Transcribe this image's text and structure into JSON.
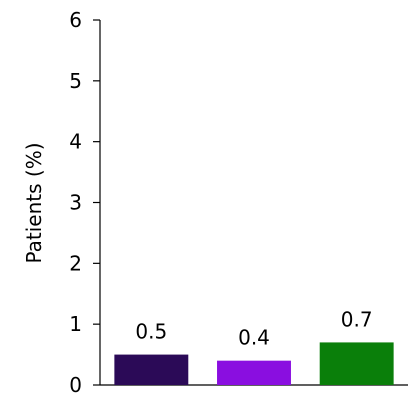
{
  "chart_data": {
    "type": "bar",
    "title": "",
    "xlabel": "",
    "ylabel": "Patients (%)",
    "ylim": [
      0,
      6
    ],
    "yticks": [
      "0",
      "1",
      "2",
      "3",
      "4",
      "5",
      "6"
    ],
    "grid": false,
    "legend": "none",
    "categories": [
      "",
      "",
      ""
    ],
    "values": [
      0.5,
      0.4,
      0.7
    ],
    "data_labels": [
      "0.5",
      "0.4",
      "0.7"
    ],
    "colors": [
      "#2b0a57",
      "#8a0ee0",
      "#0a7f0a"
    ]
  }
}
